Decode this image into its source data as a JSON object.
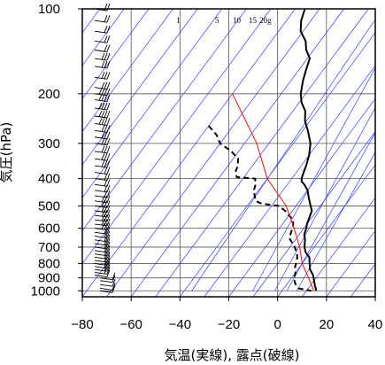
{
  "chart_data": {
    "type": "line",
    "subtype": "skew-T log-p diagram",
    "xlabel": "気温(実線), 露点(破線)",
    "ylabel": "気圧(hPa)",
    "xlim": [
      -80,
      40
    ],
    "ylim_pressure": [
      1050,
      100
    ],
    "y_scale": "log",
    "grid": true,
    "x_ticks": [
      -80,
      -60,
      -40,
      -20,
      0,
      20,
      40
    ],
    "x_tick_labels": [
      "−80",
      "−60",
      "−40",
      "−20",
      "0",
      "20",
      "40"
    ],
    "y_ticks": [
      100,
      200,
      300,
      400,
      500,
      600,
      700,
      800,
      900,
      1000
    ],
    "y_tick_labels": [
      "100",
      "200",
      "300",
      "400",
      "500",
      "600",
      "700",
      "800",
      "900",
      "1000"
    ],
    "mixing_ratio_labels": [
      "1",
      "5",
      "10",
      "15",
      "20g"
    ],
    "colors": {
      "temperature": "#000000",
      "dewpoint": "#000000",
      "parcel": "#ff0000",
      "isotherms": "#3a3aff",
      "grid": "#555555",
      "wind_barbs": "#000000"
    },
    "series": [
      {
        "name": "",
        "style": "solid",
        "points": [
          [
            100,
            -76
          ],
          [
            110,
            -74
          ],
          [
            120,
            -71
          ],
          [
            130,
            -66
          ],
          [
            140,
            -63
          ],
          [
            150,
            -59
          ],
          [
            165,
            -57
          ],
          [
            180,
            -55
          ],
          [
            200,
            -52
          ],
          [
            215,
            -49
          ],
          [
            230,
            -45
          ],
          [
            250,
            -42
          ],
          [
            270,
            -38
          ],
          [
            300,
            -33
          ],
          [
            330,
            -30
          ],
          [
            360,
            -28
          ],
          [
            380,
            -27
          ],
          [
            400,
            -26
          ],
          [
            410,
            -25
          ],
          [
            420,
            -23
          ],
          [
            440,
            -20
          ],
          [
            470,
            -17
          ],
          [
            500,
            -14
          ],
          [
            520,
            -12
          ],
          [
            550,
            -11
          ],
          [
            580,
            -10
          ],
          [
            600,
            -9
          ],
          [
            630,
            -8
          ],
          [
            660,
            -6
          ],
          [
            700,
            -4
          ],
          [
            730,
            -2
          ],
          [
            760,
            1
          ],
          [
            800,
            3
          ],
          [
            840,
            5
          ],
          [
            880,
            8
          ],
          [
            920,
            10
          ],
          [
            960,
            12
          ],
          [
            1000,
            14
          ]
        ]
      },
      {
        "name": "",
        "style": "dashed",
        "points": [
          [
            260,
            -80
          ],
          [
            280,
            -74
          ],
          [
            300,
            -70
          ],
          [
            320,
            -63
          ],
          [
            340,
            -58
          ],
          [
            360,
            -56
          ],
          [
            380,
            -55
          ],
          [
            395,
            -53
          ],
          [
            400,
            -45
          ],
          [
            420,
            -43
          ],
          [
            440,
            -42
          ],
          [
            460,
            -40
          ],
          [
            480,
            -38
          ],
          [
            490,
            -35
          ],
          [
            500,
            -27
          ],
          [
            520,
            -23
          ],
          [
            540,
            -20
          ],
          [
            560,
            -17
          ],
          [
            590,
            -15
          ],
          [
            620,
            -14
          ],
          [
            650,
            -13
          ],
          [
            680,
            -10
          ],
          [
            700,
            -8
          ],
          [
            740,
            -5
          ],
          [
            780,
            -3
          ],
          [
            820,
            -2
          ],
          [
            860,
            0
          ],
          [
            900,
            1
          ],
          [
            940,
            3
          ],
          [
            980,
            6
          ],
          [
            1000,
            12
          ]
        ]
      },
      {
        "name": "",
        "style": "solid",
        "points": [
          [
            200,
            -80
          ],
          [
            300,
            -55
          ],
          [
            400,
            -40
          ],
          [
            500,
            -24
          ],
          [
            600,
            -14
          ],
          [
            700,
            -6
          ],
          [
            800,
            0
          ],
          [
            900,
            7
          ],
          [
            1000,
            13
          ]
        ]
      }
    ],
    "wind_barbs": {
      "x_temperature": -75,
      "pressures": [
        100,
        110,
        120,
        130,
        140,
        150,
        160,
        175,
        190,
        200,
        210,
        225,
        240,
        255,
        270,
        285,
        300,
        320,
        340,
        360,
        380,
        400,
        420,
        440,
        460,
        480,
        500,
        520,
        540,
        560,
        580,
        600,
        620,
        640,
        660,
        680,
        700,
        720,
        740,
        760,
        780,
        800,
        820,
        840,
        860,
        880,
        900,
        920,
        950,
        980,
        1000
      ],
      "flags": [
        2,
        2,
        2,
        2,
        2,
        3,
        3,
        3,
        3,
        4,
        4,
        4,
        4,
        4,
        3,
        3,
        3,
        3,
        3,
        3,
        2,
        2,
        2,
        2,
        2,
        3,
        3,
        3,
        3,
        3,
        3,
        3,
        2,
        2,
        2,
        2,
        2,
        2,
        2,
        2,
        2,
        2,
        2,
        2,
        2,
        1,
        1,
        1,
        1,
        1,
        1
      ]
    }
  }
}
